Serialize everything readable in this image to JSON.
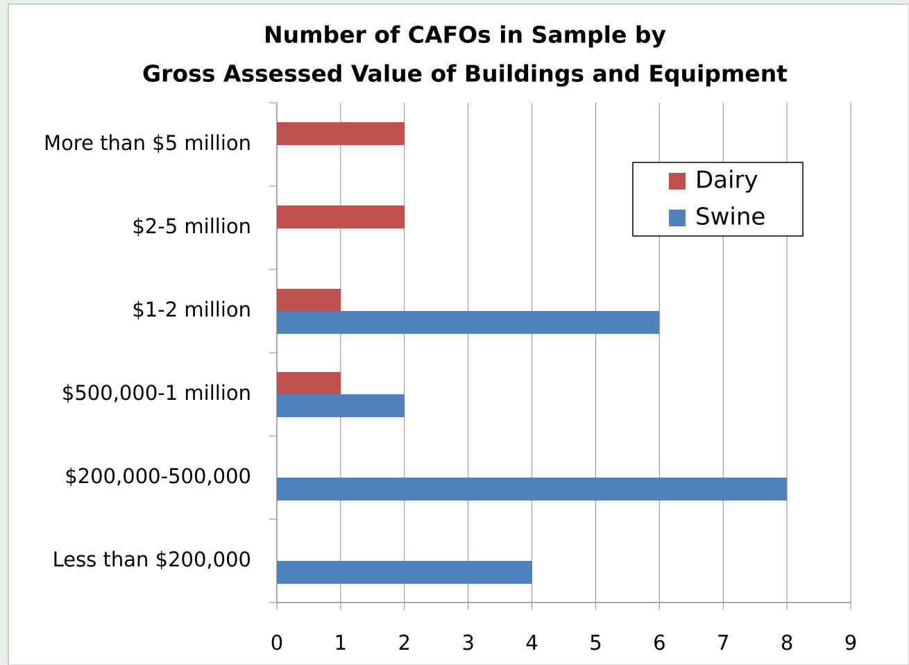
{
  "chart_data": {
    "type": "barh",
    "title": [
      "Number of CAFOs in Sample by",
      "Gross Assessed Value of Buildings and Equipment"
    ],
    "categories": [
      "More than $5 million",
      "$2-5 million",
      "$1-2 million",
      "$500,000-1 million",
      "$200,000-500,000",
      "Less than $200,000"
    ],
    "series": [
      {
        "name": "Dairy",
        "color": "#c0504d",
        "values": [
          2,
          2,
          1,
          1,
          0,
          0
        ]
      },
      {
        "name": "Swine",
        "color": "#4f81bd",
        "values": [
          0,
          0,
          6,
          2,
          8,
          4
        ]
      }
    ],
    "xlim": [
      0,
      9
    ],
    "xticks": [
      0,
      1,
      2,
      3,
      4,
      5,
      6,
      7,
      8,
      9
    ],
    "grid": true,
    "legend": "upper right"
  }
}
